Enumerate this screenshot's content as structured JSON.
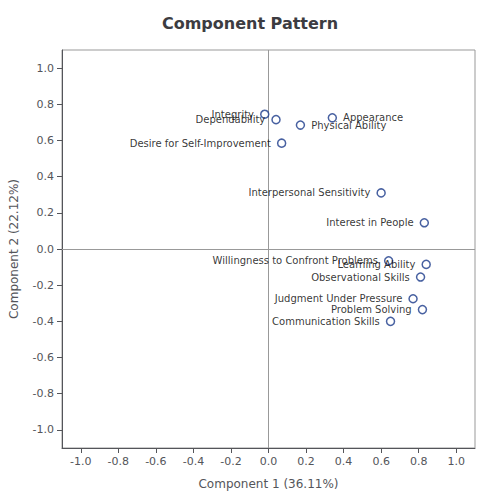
{
  "chart_data": {
    "type": "scatter",
    "title": "Component Pattern",
    "xlabel": "Component 1 (36.11%)",
    "ylabel": "Component 2 (22.12%)",
    "x": [
      -0.02,
      0.04,
      0.17,
      0.34,
      0.07,
      0.6,
      0.83,
      0.64,
      0.84,
      0.81,
      0.77,
      0.82,
      0.65
    ],
    "values": [
      0.745,
      0.715,
      0.685,
      0.725,
      0.585,
      0.31,
      0.145,
      -0.065,
      -0.085,
      -0.155,
      -0.275,
      -0.335,
      -0.4
    ],
    "annotations": [
      "Integrity",
      "Dependability",
      "Physical Ability",
      "Appearance",
      "Desire for Self-Improvement",
      "Interpersonal Sensitivity",
      "Interest in People",
      "Willingness to Confront Problems",
      "Learning Ability",
      "Observational Skills",
      "Judgment Under Pressure",
      "Problem Solving",
      "Communication Skills"
    ],
    "color": "#1a3a8a",
    "marker": "hollow",
    "xlim": [
      -1.1,
      1.1
    ],
    "ylim": [
      -1.1,
      1.1
    ],
    "xticks": [
      {
        "value": -1.0,
        "label": "-1.0"
      },
      -0.8,
      -0.6,
      -0.4,
      -0.2,
      {
        "value": 0.0,
        "label": "0.0"
      },
      0.2,
      0.4,
      0.6,
      0.8,
      {
        "value": 1.0,
        "label": "1.0"
      }
    ],
    "yticks": [
      {
        "value": -1.0,
        "label": "-1.0"
      },
      -0.8,
      -0.6,
      -0.4,
      -0.2,
      {
        "value": 0.0,
        "label": "0.0"
      },
      0.2,
      0.4,
      0.6,
      0.8,
      {
        "value": 1.0,
        "label": "1.0"
      }
    ],
    "grid": false
  }
}
